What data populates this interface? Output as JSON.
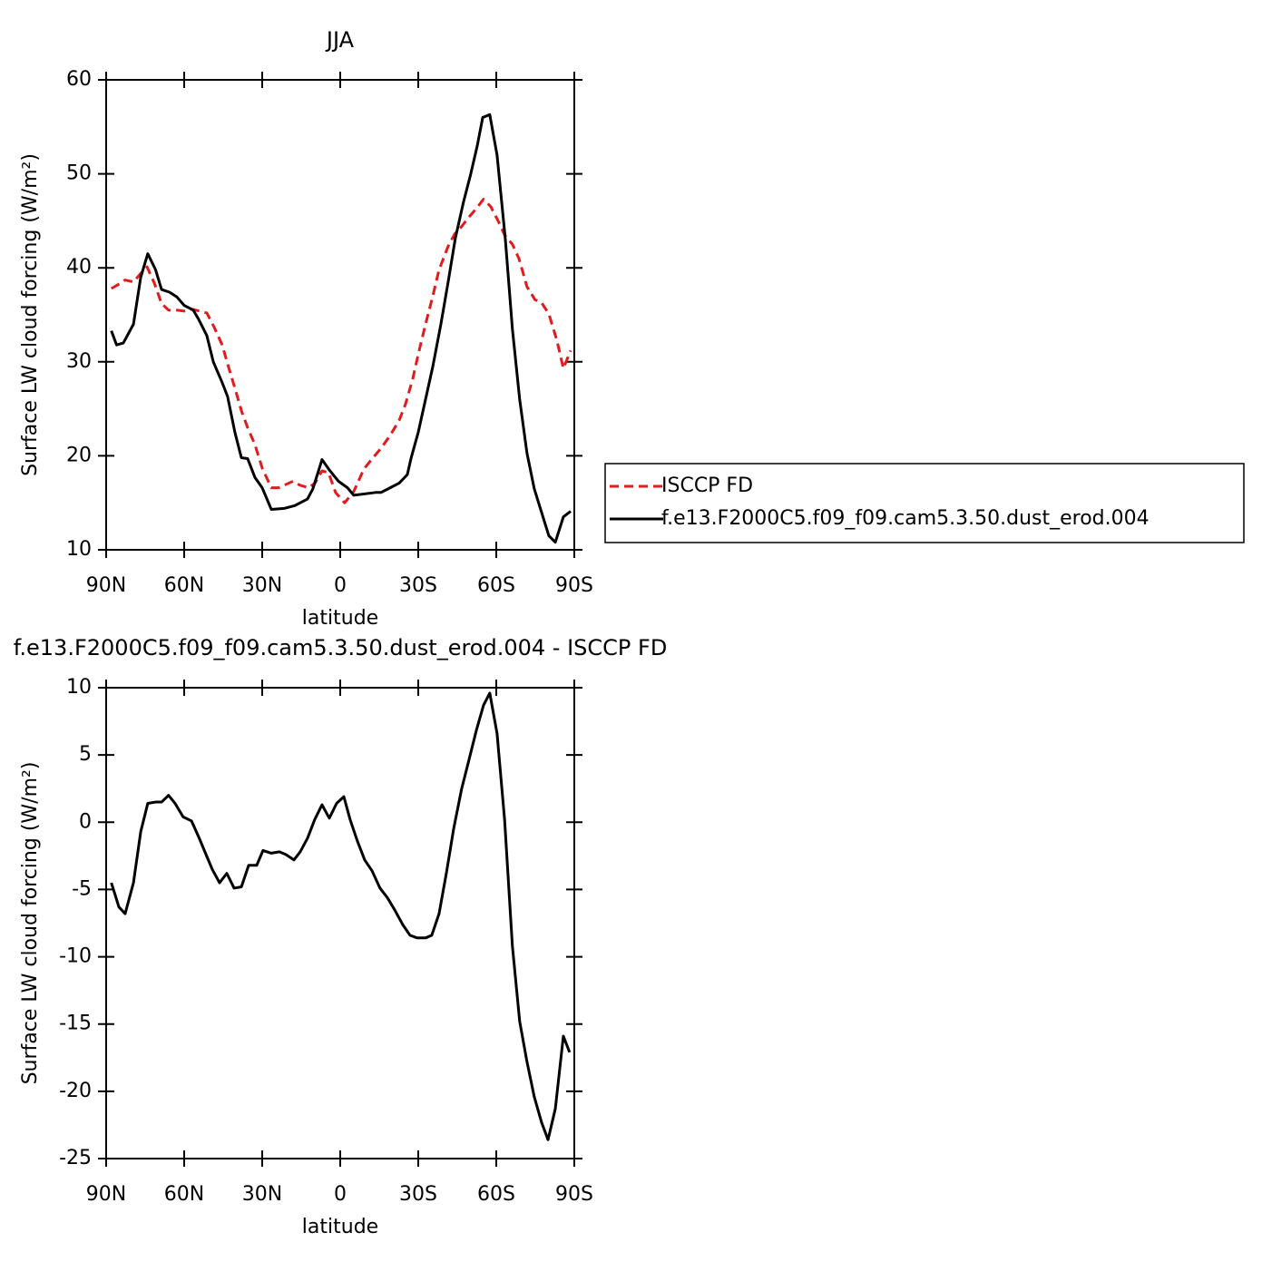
{
  "chart_data": [
    {
      "type": "line",
      "title": "JJA",
      "xlabel": "latitude",
      "ylabel": "Surface LW cloud forcing (W/m²)",
      "xlim": [
        90,
        -90
      ],
      "xticks": [
        {
          "value": 90,
          "label": "90N"
        },
        {
          "value": 60,
          "label": "60N"
        },
        {
          "value": 30,
          "label": "30N"
        },
        0,
        {
          "value": -30,
          "label": "30S"
        },
        {
          "value": -60,
          "label": "60S"
        },
        {
          "value": -90,
          "label": "90S"
        }
      ],
      "ylim": [
        10,
        60
      ],
      "yticks": [
        10,
        20,
        30,
        40,
        50,
        60
      ],
      "legend": "outside-right",
      "series": [
        {
          "name": "ISCCP FD",
          "color": "#e41a1c",
          "line_style": "dashed",
          "x": [
            88,
            85.5,
            82.7,
            79.5,
            76.7,
            74.3,
            71.5,
            68.7,
            66,
            62.8,
            60,
            56.9,
            51.3,
            48.5,
            45.4,
            43,
            40.5,
            38,
            35.6,
            32.8,
            30,
            26.5,
            23.7,
            18.1,
            15.7,
            12.2,
            9.7,
            7,
            4.5,
            1.8,
            -1.7,
            -5.2,
            -9.1,
            -12.9,
            -15.7,
            -19.5,
            -22.7,
            -25.1,
            -27.9,
            -30,
            -32.8,
            -35.6,
            -38,
            -41.5,
            -44,
            -46.4,
            -49.2,
            -52.3,
            -55.1,
            -57.9,
            -60.7,
            -63.2,
            -66.2,
            -68.7,
            -71.8,
            -74.9,
            -77.4,
            -80.2,
            -83.3,
            -85.8,
            -88.6
          ],
          "values": [
            37.8,
            38.2,
            38.7,
            38.5,
            39.4,
            40.1,
            38.4,
            36.2,
            35.5,
            35.5,
            35.4,
            35.6,
            35.2,
            33.7,
            31.8,
            29.5,
            27.2,
            24.8,
            23,
            21.2,
            18.7,
            16.6,
            16.6,
            17.3,
            16.9,
            16.6,
            17.1,
            18.4,
            18.2,
            16.1,
            15,
            16.2,
            18.6,
            19.9,
            20.8,
            22.3,
            23.8,
            25.5,
            28.2,
            30.8,
            34,
            37,
            39.8,
            42.3,
            43.6,
            44.3,
            45.3,
            46.3,
            47.3,
            46.5,
            45,
            43.5,
            42.5,
            41,
            38,
            36.6,
            36.3,
            35.1,
            32.3,
            29.3,
            31.2
          ]
        },
        {
          "name": "f.e13.F2000C5.f09_f09.cam5.3.50.dust_erod.004",
          "color": "#000000",
          "line_style": "solid",
          "x": [
            88,
            86,
            83.4,
            79.5,
            76.7,
            74,
            71,
            68.7,
            65.6,
            62.8,
            60,
            56.5,
            54.4,
            51.3,
            48.8,
            45.4,
            43.3,
            40.5,
            38,
            35.6,
            32.8,
            30,
            26.5,
            21.6,
            17.5,
            12.6,
            10.5,
            7,
            4.2,
            0.7,
            -2.8,
            -5.2,
            -13.6,
            -15.7,
            -19.2,
            -22.7,
            -25.8,
            -27.2,
            -30,
            -32.8,
            -35.6,
            -38.7,
            -41.5,
            -44.3,
            -47.4,
            -50.2,
            -52.7,
            -54.8,
            -57.5,
            -60.3,
            -63.5,
            -66.2,
            -69,
            -71.8,
            -74.6,
            -77.4,
            -80.2,
            -82.7,
            -85.8,
            -88.6
          ],
          "values": [
            33.3,
            31.8,
            32,
            34,
            39,
            41.5,
            39.8,
            37.7,
            37.4,
            36.9,
            36,
            35.5,
            34.5,
            32.8,
            30,
            27.8,
            26.3,
            22.5,
            19.8,
            19.7,
            17.7,
            16.6,
            14.3,
            14.4,
            14.7,
            15.4,
            16.5,
            19.6,
            18.5,
            17.3,
            16.6,
            15.8,
            16.1,
            16.1,
            16.6,
            17.1,
            18,
            19.7,
            22.5,
            26,
            29.5,
            34,
            38.5,
            43.2,
            47,
            50,
            53,
            56,
            56.3,
            52,
            43,
            33.5,
            26,
            20.3,
            16.5,
            14,
            11.5,
            10.8,
            13.5,
            14.1
          ]
        }
      ]
    },
    {
      "type": "line",
      "title": "f.e13.F2000C5.f09_f09.cam5.3.50.dust_erod.004 - ISCCP FD",
      "xlabel": "latitude",
      "ylabel": "Surface LW cloud forcing (W/m²)",
      "xlim": [
        90,
        -90
      ],
      "xticks": [
        {
          "value": 90,
          "label": "90N"
        },
        {
          "value": 60,
          "label": "60N"
        },
        {
          "value": 30,
          "label": "30N"
        },
        0,
        {
          "value": -30,
          "label": "30S"
        },
        {
          "value": -60,
          "label": "60S"
        },
        {
          "value": -90,
          "label": "90S"
        }
      ],
      "ylim": [
        -25,
        10
      ],
      "yticks": [
        -25,
        -20,
        -15,
        -10,
        -5,
        0,
        5,
        10
      ],
      "series": [
        {
          "color": "#000000",
          "line_style": "solid",
          "x": [
            88,
            85.1,
            82.7,
            79.5,
            76.7,
            74,
            71,
            68.7,
            66,
            63.5,
            60.4,
            57.2,
            54.4,
            51.6,
            49.2,
            46.4,
            43.6,
            40.8,
            38,
            35.2,
            32.1,
            29.7,
            26.5,
            23.4,
            20.9,
            17.8,
            15.4,
            12.6,
            9.8,
            7,
            4.2,
            1.4,
            -1.4,
            -3.8,
            -6.6,
            -9.4,
            -12.2,
            -15.3,
            -18.1,
            -20.9,
            -24,
            -26.8,
            -29.6,
            -32.8,
            -35.2,
            -38,
            -40.8,
            -43.6,
            -46.7,
            -49.2,
            -52.3,
            -55.1,
            -57.5,
            -60.3,
            -63.2,
            -66.2,
            -69,
            -71.8,
            -74.6,
            -77.4,
            -79.9,
            -82.7,
            -85.8,
            -88.2
          ],
          "values": [
            -4.5,
            -6.3,
            -6.8,
            -4.5,
            -0.7,
            1.4,
            1.5,
            1.5,
            2,
            1.4,
            0.4,
            0.1,
            -1.1,
            -2.4,
            -3.5,
            -4.5,
            -3.8,
            -4.9,
            -4.8,
            -3.2,
            -3.2,
            -2.1,
            -2.3,
            -2.2,
            -2.4,
            -2.8,
            -2.2,
            -1.2,
            0.2,
            1.3,
            0.3,
            1.4,
            1.9,
            0.2,
            -1.4,
            -2.8,
            -3.6,
            -4.9,
            -5.6,
            -6.5,
            -7.6,
            -8.4,
            -8.6,
            -8.6,
            -8.4,
            -6.8,
            -3.8,
            -0.5,
            2.5,
            4.4,
            6.8,
            8.7,
            9.6,
            6.6,
            0.2,
            -9.2,
            -14.8,
            -17.8,
            -20.4,
            -22.3,
            -23.6,
            -21.3,
            -15.9,
            -17.1
          ]
        }
      ]
    }
  ]
}
